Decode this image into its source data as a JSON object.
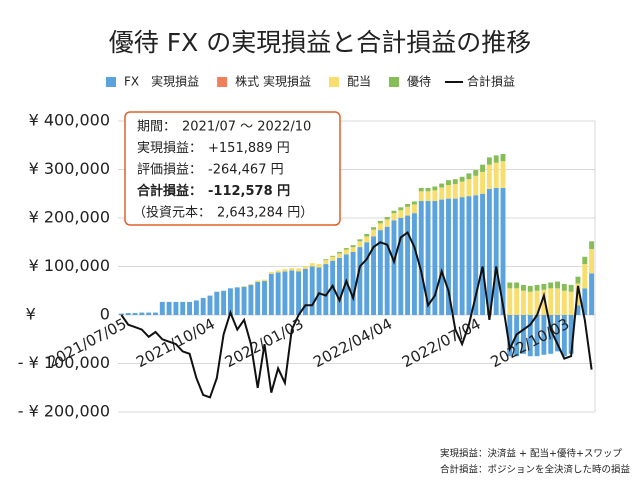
{
  "chart_data": {
    "type": "bar",
    "stacked": true,
    "title": "優待 FX の実現損益と合計損益の推移",
    "categories": [
      "2021/07/05",
      null,
      null,
      null,
      null,
      null,
      null,
      null,
      null,
      null,
      null,
      null,
      null,
      "2021/10/04",
      null,
      null,
      null,
      null,
      null,
      null,
      null,
      null,
      null,
      null,
      null,
      null,
      "2022/01/03",
      null,
      null,
      null,
      null,
      null,
      null,
      null,
      null,
      null,
      null,
      null,
      null,
      "2022/04/04",
      null,
      null,
      null,
      null,
      null,
      null,
      null,
      null,
      null,
      null,
      null,
      null,
      "2022/07/04",
      null,
      null,
      null,
      null,
      null,
      null,
      null,
      null,
      null,
      null,
      null,
      null,
      "2022/10/03",
      null,
      null,
      null,
      null
    ],
    "series": [
      {
        "name": "FX　実現損益",
        "type": "bar",
        "color": "#5ba3dc",
        "values": [
          3000,
          4000,
          4000,
          5000,
          5000,
          5000,
          27000,
          27000,
          27000,
          27000,
          27000,
          30000,
          35000,
          40000,
          48000,
          50000,
          55000,
          57000,
          58000,
          62000,
          68000,
          70000,
          85000,
          88000,
          90000,
          92000,
          90000,
          95000,
          100000,
          98000,
          105000,
          112000,
          118000,
          125000,
          130000,
          140000,
          150000,
          162000,
          175000,
          182000,
          195000,
          200000,
          205000,
          210000,
          235000,
          235000,
          235000,
          238000,
          240000,
          240000,
          243000,
          245000,
          247000,
          250000,
          260000,
          262000,
          262000,
          -85000,
          -85000,
          -80000,
          -85000,
          -85000,
          -82000,
          -80000,
          -75000,
          -85000,
          -80000,
          20000,
          55000,
          86000
        ]
      },
      {
        "name": "株式 実現損益",
        "type": "bar",
        "color": "#f07f5e",
        "values": [
          0,
          0,
          0,
          0,
          0,
          0,
          0,
          0,
          0,
          0,
          0,
          0,
          0,
          0,
          0,
          0,
          0,
          0,
          0,
          0,
          0,
          0,
          0,
          0,
          0,
          0,
          0,
          0,
          0,
          0,
          0,
          0,
          0,
          0,
          0,
          0,
          0,
          0,
          0,
          0,
          0,
          0,
          0,
          0,
          0,
          0,
          0,
          0,
          0,
          0,
          0,
          0,
          0,
          0,
          0,
          0,
          0,
          0,
          0,
          0,
          0,
          0,
          0,
          0,
          0,
          0,
          0,
          0,
          0,
          0
        ]
      },
      {
        "name": "配当",
        "type": "bar",
        "color": "#f8de6e",
        "values": [
          0,
          0,
          0,
          0,
          0,
          0,
          0,
          0,
          0,
          0,
          0,
          0,
          0,
          0,
          0,
          0,
          0,
          0,
          2000,
          2000,
          3000,
          3000,
          4000,
          4000,
          5000,
          5000,
          6000,
          6000,
          7000,
          7000,
          8000,
          8000,
          9000,
          10000,
          10000,
          12000,
          12000,
          14000,
          14000,
          15000,
          15000,
          16000,
          18000,
          18000,
          20000,
          20000,
          22000,
          25000,
          28000,
          30000,
          32000,
          35000,
          40000,
          45000,
          50000,
          52000,
          55000,
          55000,
          55000,
          50000,
          48000,
          50000,
          52000,
          55000,
          55000,
          50000,
          48000,
          45000,
          50000,
          50000
        ]
      },
      {
        "name": "優待",
        "type": "bar",
        "color": "#86bd57",
        "values": [
          0,
          0,
          0,
          0,
          0,
          0,
          0,
          0,
          0,
          0,
          0,
          0,
          0,
          0,
          0,
          0,
          0,
          0,
          0,
          0,
          0,
          0,
          0,
          0,
          0,
          0,
          0,
          0,
          0,
          0,
          2000,
          2000,
          3000,
          3000,
          4000,
          4000,
          5000,
          5000,
          5000,
          5000,
          5000,
          6000,
          6000,
          6000,
          7000,
          7000,
          8000,
          8000,
          10000,
          10000,
          10000,
          12000,
          12000,
          15000,
          15000,
          15000,
          15000,
          12000,
          12000,
          12000,
          12000,
          12000,
          12000,
          12000,
          14000,
          14000,
          14000,
          14000,
          15000,
          15889
        ]
      },
      {
        "name": "合計損益",
        "type": "line",
        "color": "#111111",
        "values": [
          0,
          -20000,
          -25000,
          -30000,
          -45000,
          -35000,
          -50000,
          -55000,
          -60000,
          -75000,
          -80000,
          -130000,
          -165000,
          -170000,
          -130000,
          -40000,
          5000,
          -30000,
          -10000,
          -60000,
          -150000,
          -60000,
          -160000,
          -110000,
          -140000,
          -30000,
          0,
          20000,
          20000,
          45000,
          40000,
          60000,
          30000,
          70000,
          35000,
          100000,
          115000,
          140000,
          150000,
          145000,
          110000,
          160000,
          170000,
          140000,
          90000,
          20000,
          40000,
          90000,
          50000,
          -30000,
          -60000,
          -20000,
          40000,
          100000,
          -10000,
          100000,
          20000,
          -70000,
          -40000,
          -30000,
          -20000,
          0,
          40000,
          -30000,
          -60000,
          -90000,
          -85000,
          60000,
          -10000,
          -112578
        ]
      }
    ],
    "ylim": [
      -200000,
      400000
    ],
    "yticks": [
      {
        "value": -200000,
        "label": "- ¥ 200,000"
      },
      {
        "value": -100000,
        "label": "- ¥ 100,000"
      },
      {
        "value": 0,
        "label": "¥　　　　0"
      },
      {
        "value": 100000,
        "label": "¥ 100,000"
      },
      {
        "value": 200000,
        "label": "¥ 200,000"
      },
      {
        "value": 300000,
        "label": "¥ 300,000"
      },
      {
        "value": 400000,
        "label": "¥ 400,000"
      }
    ],
    "negative_tick_color": "#c00000",
    "grid": true,
    "legend": "top",
    "summary_box": [
      {
        "label": "期間：",
        "value": "2021/07 ～ 2022/10"
      },
      {
        "label": "実現損益：",
        "value": "+151,889 円"
      },
      {
        "label": "評価損益：",
        "value": "-264,467 円"
      },
      {
        "label": "合計損益：",
        "value": "-112,578 円"
      },
      {
        "label": "（投資元本：",
        "value": "2,643,284 円）"
      }
    ],
    "footnotes": [
      "実現損益：決済益 + 配当+優待+スワップ",
      "合計損益：ポジションを全決済した時の損益"
    ]
  }
}
